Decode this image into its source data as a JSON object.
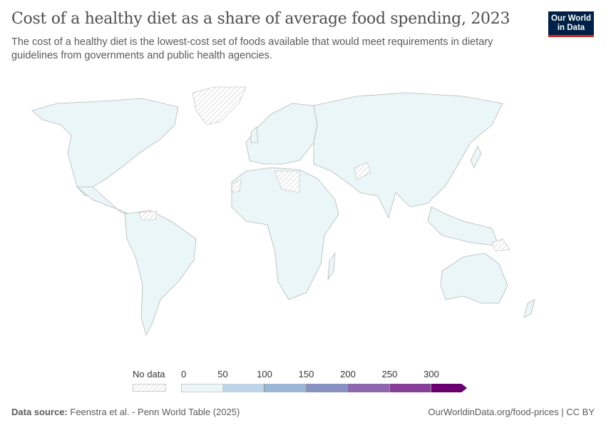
{
  "title": "Cost of a healthy diet as a share of average food spending, 2023",
  "subtitle": "The cost of a healthy diet is the lowest-cost set of foods available that would meet requirements in dietary guidelines from governments and public health agencies.",
  "logo": {
    "line1": "Our World",
    "line2": "in Data"
  },
  "legend": {
    "no_data_label": "No data",
    "ticks": [
      "0",
      "50",
      "100",
      "150",
      "200",
      "250",
      "300"
    ],
    "colors": [
      "#eaf6f8",
      "#bdd3e6",
      "#9cb6d6",
      "#8990c2",
      "#8e66ae",
      "#863e98",
      "#6a0070"
    ],
    "no_data_color": "#e8e8e8"
  },
  "footer": {
    "source_label": "Data source:",
    "source": "Feenstra et al. - Penn World Table (2025)",
    "url_license": "OurWorldinData.org/food-prices | CC BY"
  }
}
